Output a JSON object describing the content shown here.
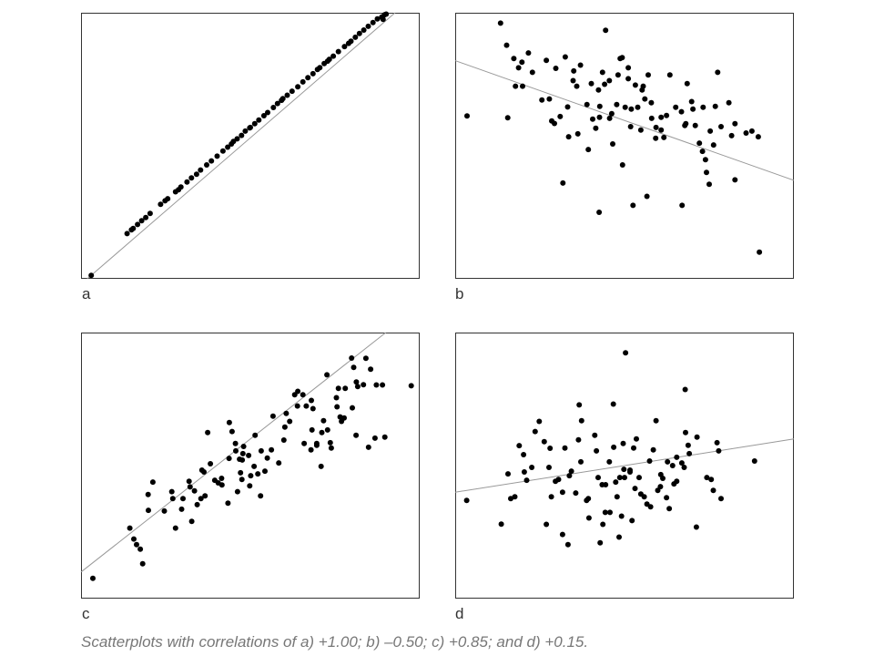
{
  "caption": "Scatterplots with correlations of a) +1.00; b) –0.50; c) +0.85; and d) +0.15.",
  "chart_data": [
    {
      "type": "scatter",
      "label": "a",
      "correlation": 1.0,
      "xlim": [
        0,
        100
      ],
      "ylim": [
        0,
        100
      ],
      "grid": false,
      "trendline": {
        "intercept": -2,
        "slope": 1.1
      },
      "points": [
        [
          3,
          1.3
        ],
        [
          13.6,
          17
        ],
        [
          15.4,
          18.9
        ],
        [
          16.7,
          20.4
        ],
        [
          17.9,
          21.8
        ],
        [
          19.1,
          23
        ],
        [
          20.4,
          24.6
        ],
        [
          23.5,
          28
        ],
        [
          25.6,
          30.1
        ],
        [
          27.9,
          32.7
        ],
        [
          29.5,
          34.5
        ],
        [
          31.3,
          36.4
        ],
        [
          32.6,
          37.9
        ],
        [
          34.1,
          39.3
        ],
        [
          35.3,
          40.9
        ],
        [
          37.1,
          42.8
        ],
        [
          40.2,
          46.1
        ],
        [
          41.9,
          48
        ],
        [
          43.3,
          49.5
        ],
        [
          44.4,
          50.7
        ],
        [
          46.1,
          52.6
        ],
        [
          47.4,
          53.9
        ],
        [
          48.5,
          55.5
        ],
        [
          49.8,
          56.7
        ],
        [
          51.3,
          58.3
        ],
        [
          52.5,
          59.7
        ],
        [
          54,
          61.3
        ],
        [
          55.1,
          62.5
        ],
        [
          56.8,
          64.4
        ],
        [
          58,
          65.9
        ],
        [
          59.2,
          67.1
        ],
        [
          60.9,
          69
        ],
        [
          62.3,
          70.5
        ],
        [
          64,
          72.2
        ],
        [
          65.5,
          74
        ],
        [
          67,
          75.6
        ],
        [
          68.5,
          77.1
        ],
        [
          69.8,
          78.7
        ],
        [
          71.8,
          80.9
        ],
        [
          72.8,
          81.8
        ],
        [
          74.5,
          83.7
        ],
        [
          76,
          85.4
        ],
        [
          77.8,
          87.3
        ],
        [
          79.7,
          89.3
        ],
        [
          81,
          90.8
        ],
        [
          82.2,
          92.2
        ],
        [
          83.5,
          93.5
        ],
        [
          84.8,
          94.9
        ],
        [
          86.2,
          96.3
        ],
        [
          87.5,
          97.7
        ],
        [
          89.6,
          99.2
        ],
        [
          90.1,
          99.5
        ],
        [
          89.2,
          97.5
        ],
        [
          88.8,
          98.4
        ],
        [
          79,
          88.5
        ],
        [
          73.3,
          82.5
        ],
        [
          70.5,
          79.4
        ],
        [
          59.6,
          67.7
        ],
        [
          50,
          56.9
        ],
        [
          45,
          51.6
        ],
        [
          38.5,
          44.3
        ],
        [
          28.8,
          33.5
        ],
        [
          14.9,
          18.4
        ],
        [
          24.8,
          29.3
        ]
      ]
    },
    {
      "type": "scatter",
      "label": "b",
      "correlation": -0.5,
      "xlim": [
        0,
        100
      ],
      "ylim": [
        0,
        100
      ],
      "grid": false,
      "trendline": {
        "intercept": 82,
        "slope": -0.45
      },
      "points": [
        [
          3.5,
          61.2
        ],
        [
          13.4,
          96.1
        ],
        [
          15.2,
          87.8
        ],
        [
          15.5,
          60.5
        ],
        [
          17.3,
          82.8
        ],
        [
          17.8,
          72.4
        ],
        [
          18.7,
          79.3
        ],
        [
          19.7,
          81.4
        ],
        [
          19.9,
          72.4
        ],
        [
          21.6,
          84.9
        ],
        [
          22.8,
          77.6
        ],
        [
          25.6,
          67.2
        ],
        [
          26.9,
          82.1
        ],
        [
          27.8,
          67.6
        ],
        [
          28.5,
          59.3
        ],
        [
          29.3,
          58.4
        ],
        [
          29.7,
          79.1
        ],
        [
          31,
          61
        ],
        [
          31.8,
          36
        ],
        [
          32.5,
          83.4
        ],
        [
          33.2,
          64.6
        ],
        [
          33.5,
          53.4
        ],
        [
          35,
          78.1
        ],
        [
          34.8,
          74.5
        ],
        [
          35.9,
          72.4
        ],
        [
          36.2,
          54.5
        ],
        [
          37,
          80.3
        ],
        [
          38.9,
          65.5
        ],
        [
          39.3,
          48.6
        ],
        [
          40.2,
          73.4
        ],
        [
          40.6,
          60
        ],
        [
          41.5,
          56.6
        ],
        [
          42.3,
          71
        ],
        [
          42.6,
          60.7
        ],
        [
          42.5,
          25
        ],
        [
          42.7,
          64.8
        ],
        [
          43.5,
          77.6
        ],
        [
          44.1,
          73.1
        ],
        [
          44.4,
          93.4
        ],
        [
          45.5,
          74.5
        ],
        [
          45.6,
          60.3
        ],
        [
          46.2,
          62.1
        ],
        [
          46.5,
          50.7
        ],
        [
          47.7,
          65.5
        ],
        [
          48.1,
          76.6
        ],
        [
          48.7,
          82.8
        ],
        [
          49.3,
          83.1
        ],
        [
          49.4,
          42.8
        ],
        [
          50.2,
          64.5
        ],
        [
          51.1,
          75.2
        ],
        [
          51.1,
          79.3
        ],
        [
          51.8,
          57.2
        ],
        [
          52,
          63.8
        ],
        [
          52.5,
          27.6
        ],
        [
          53.2,
          72.8
        ],
        [
          53.9,
          64.5
        ],
        [
          54.8,
          55.9
        ],
        [
          55.2,
          71
        ],
        [
          55.5,
          72.4
        ],
        [
          56,
          67.6
        ],
        [
          56.6,
          31
        ],
        [
          57,
          76.6
        ],
        [
          57.9,
          66.2
        ],
        [
          58,
          60.3
        ],
        [
          59.2,
          52.8
        ],
        [
          59.3,
          56.9
        ],
        [
          60.8,
          60.7
        ],
        [
          60.8,
          55.9
        ],
        [
          61.6,
          53.1
        ],
        [
          62.4,
          61.4
        ],
        [
          63.4,
          76.6
        ],
        [
          65.1,
          64.5
        ],
        [
          66.8,
          62.8
        ],
        [
          67,
          27.6
        ],
        [
          67.8,
          57.6
        ],
        [
          68.1,
          58.3
        ],
        [
          68.5,
          73.4
        ],
        [
          69.8,
          66.6
        ],
        [
          70.2,
          63.8
        ],
        [
          70.9,
          57.6
        ],
        [
          72.1,
          51
        ],
        [
          73.2,
          64.5
        ],
        [
          73,
          47.9
        ],
        [
          73.9,
          44.8
        ],
        [
          75.3,
          55.5
        ],
        [
          76.8,
          64.8
        ],
        [
          76.3,
          50.3
        ],
        [
          75,
          35.5
        ],
        [
          74.2,
          40
        ],
        [
          77.5,
          77.6
        ],
        [
          78.5,
          57.2
        ],
        [
          80.8,
          66.2
        ],
        [
          81.6,
          53.8
        ],
        [
          82.6,
          58.3
        ],
        [
          82.6,
          37.2
        ],
        [
          85.9,
          54.8
        ],
        [
          87.6,
          55.5
        ],
        [
          89.5,
          53.4
        ],
        [
          89.8,
          10
        ]
      ]
    },
    {
      "type": "scatter",
      "label": "c",
      "correlation": 0.85,
      "xlim": [
        0,
        100
      ],
      "ylim": [
        0,
        100
      ],
      "grid": false,
      "trendline": {
        "intercept": 10,
        "slope": 1.0
      },
      "points": [
        [
          3.5,
          7.6
        ],
        [
          14.4,
          26.5
        ],
        [
          15.6,
          22.4
        ],
        [
          16.4,
          20.3
        ],
        [
          17.5,
          18.6
        ],
        [
          18.2,
          13.1
        ],
        [
          19.8,
          39.1
        ],
        [
          19.9,
          33.2
        ],
        [
          21.2,
          43.8
        ],
        [
          24.6,
          32.9
        ],
        [
          26.8,
          40.2
        ],
        [
          27.1,
          37.6
        ],
        [
          27.9,
          26.5
        ],
        [
          29.7,
          33.6
        ],
        [
          30.1,
          37.6
        ],
        [
          31.9,
          44.1
        ],
        [
          32.2,
          42
        ],
        [
          32.7,
          29
        ],
        [
          33.5,
          40.5
        ],
        [
          34.3,
          35.3
        ],
        [
          35.4,
          37.6
        ],
        [
          36.3,
          47.6
        ],
        [
          36.6,
          38.6
        ],
        [
          35.7,
          48.3
        ],
        [
          37.4,
          62.4
        ],
        [
          38.2,
          50.7
        ],
        [
          39.5,
          44.5
        ],
        [
          40.5,
          43.5
        ],
        [
          41.6,
          42.7
        ],
        [
          41.5,
          45.2
        ],
        [
          43.4,
          35.9
        ],
        [
          43.7,
          52.7
        ],
        [
          43.8,
          66.2
        ],
        [
          44.6,
          62.8
        ],
        [
          45.6,
          58.3
        ],
        [
          45.7,
          55.5
        ],
        [
          46.2,
          40.2
        ],
        [
          46.8,
          52.4
        ],
        [
          47.1,
          47.3
        ],
        [
          47.5,
          44.8
        ],
        [
          47.8,
          54.5
        ],
        [
          47.6,
          52.1
        ],
        [
          48,
          57.2
        ],
        [
          49.8,
          42.4
        ],
        [
          49.5,
          53.8
        ],
        [
          50.1,
          46.2
        ],
        [
          51.1,
          49.7
        ],
        [
          51.4,
          61.4
        ],
        [
          52.2,
          46.9
        ],
        [
          53.2,
          55.5
        ],
        [
          53,
          38.6
        ],
        [
          54.3,
          47.9
        ],
        [
          55,
          52.8
        ],
        [
          56.2,
          55.9
        ],
        [
          56.7,
          68.6
        ],
        [
          58.4,
          51
        ],
        [
          59.9,
          59.6
        ],
        [
          60.2,
          64.5
        ],
        [
          60.6,
          69.6
        ],
        [
          61.6,
          66.6
        ],
        [
          63.1,
          76.6
        ],
        [
          63.9,
          72.4
        ],
        [
          64,
          77.9
        ],
        [
          65.5,
          76.6
        ],
        [
          65.9,
          58.3
        ],
        [
          66.5,
          72.4
        ],
        [
          67.9,
          55.9
        ],
        [
          68.2,
          63.4
        ],
        [
          68,
          74.5
        ],
        [
          68.5,
          71.4
        ],
        [
          69.6,
          57.6
        ],
        [
          69.6,
          58.3
        ],
        [
          70.9,
          49.7
        ],
        [
          71.1,
          62.4
        ],
        [
          71.6,
          66.9
        ],
        [
          72.8,
          63.4
        ],
        [
          72.6,
          84.1
        ],
        [
          73.6,
          58.6
        ],
        [
          73.9,
          56.6
        ],
        [
          75.4,
          75.5
        ],
        [
          75.6,
          72.1
        ],
        [
          76,
          79
        ],
        [
          76.5,
          68.3
        ],
        [
          76.9,
          66.6
        ],
        [
          77.7,
          67.9
        ],
        [
          78,
          79
        ],
        [
          79.9,
          90.4
        ],
        [
          80.1,
          71.7
        ],
        [
          80.5,
          86.9
        ],
        [
          81.7,
          79.7
        ],
        [
          81.2,
          61.4
        ],
        [
          81.3,
          81.4
        ],
        [
          83.4,
          80.4
        ],
        [
          84.1,
          90.3
        ],
        [
          84.9,
          56.9
        ],
        [
          85.5,
          86.2
        ],
        [
          86.8,
          60.3
        ],
        [
          87.2,
          80.3
        ],
        [
          89,
          80.3
        ],
        [
          89.7,
          60.7
        ],
        [
          97.5,
          80
        ]
      ]
    },
    {
      "type": "scatter",
      "label": "d",
      "correlation": 0.15,
      "xlim": [
        0,
        100
      ],
      "ylim": [
        0,
        100
      ],
      "grid": false,
      "trendline": {
        "intercept": 40,
        "slope": 0.2
      },
      "points": [
        [
          3.4,
          36.9
        ],
        [
          13.6,
          28
        ],
        [
          15.6,
          46.9
        ],
        [
          16.4,
          37.6
        ],
        [
          17.6,
          38.3
        ],
        [
          18.9,
          57.5
        ],
        [
          20.2,
          54.1
        ],
        [
          20.4,
          47.6
        ],
        [
          21.1,
          44.5
        ],
        [
          22.6,
          49.3
        ],
        [
          23.6,
          62.8
        ],
        [
          24.8,
          66.6
        ],
        [
          26.3,
          59
        ],
        [
          26.9,
          27.9
        ],
        [
          27.7,
          49.3
        ],
        [
          28,
          56.5
        ],
        [
          28.4,
          38.3
        ],
        [
          29.6,
          44.1
        ],
        [
          30.5,
          44.8
        ],
        [
          31.7,
          24.1
        ],
        [
          31.7,
          40
        ],
        [
          32.4,
          56.6
        ],
        [
          33.3,
          20.3
        ],
        [
          33.7,
          46.2
        ],
        [
          34.3,
          47.9
        ],
        [
          35.6,
          39.7
        ],
        [
          36.4,
          59.7
        ],
        [
          36.6,
          72.8
        ],
        [
          37.3,
          66.9
        ],
        [
          37.1,
          51.4
        ],
        [
          38.8,
          36.9
        ],
        [
          39.3,
          37.6
        ],
        [
          39.5,
          30.3
        ],
        [
          41.2,
          61.4
        ],
        [
          41.7,
          55.5
        ],
        [
          42.2,
          45.5
        ],
        [
          42.8,
          21
        ],
        [
          43.4,
          42.8
        ],
        [
          43.6,
          27.9
        ],
        [
          44.4,
          42.8
        ],
        [
          44.3,
          32.4
        ],
        [
          45.5,
          51.4
        ],
        [
          45.7,
          32.4
        ],
        [
          46.7,
          73.1
        ],
        [
          46.8,
          56.9
        ],
        [
          47.4,
          43.8
        ],
        [
          47.8,
          38.3
        ],
        [
          48.6,
          45.5
        ],
        [
          48.4,
          23.1
        ],
        [
          49.1,
          31
        ],
        [
          49.6,
          58.3
        ],
        [
          49.8,
          48.6
        ],
        [
          50,
          45.5
        ],
        [
          50.3,
          92.4
        ],
        [
          51.6,
          47.6
        ],
        [
          51.6,
          48.3
        ],
        [
          52.2,
          29.3
        ],
        [
          52.7,
          56.6
        ],
        [
          53.1,
          41.4
        ],
        [
          53.5,
          60
        ],
        [
          54.3,
          45.5
        ],
        [
          54.8,
          39.3
        ],
        [
          55.8,
          38.3
        ],
        [
          56.6,
          35.5
        ],
        [
          57.4,
          51.7
        ],
        [
          57.7,
          34.5
        ],
        [
          58.5,
          55.9
        ],
        [
          59.3,
          66.9
        ],
        [
          59.8,
          40.7
        ],
        [
          60.6,
          42.1
        ],
        [
          60.7,
          46.6
        ],
        [
          61.3,
          45.2
        ],
        [
          62.4,
          37.9
        ],
        [
          62.7,
          51.4
        ],
        [
          63.2,
          33.8
        ],
        [
          64.2,
          50
        ],
        [
          64.6,
          43.1
        ],
        [
          65.4,
          53.1
        ],
        [
          65.4,
          44.1
        ],
        [
          66.9,
          51
        ],
        [
          67.6,
          49.3
        ],
        [
          67.9,
          78.6
        ],
        [
          68,
          62.4
        ],
        [
          68.8,
          57.6
        ],
        [
          69.1,
          54.5
        ],
        [
          71.2,
          26.9
        ],
        [
          71.4,
          60.7
        ],
        [
          74.3,
          45.5
        ],
        [
          75.6,
          44.8
        ],
        [
          76.2,
          40.7
        ],
        [
          77.3,
          58.6
        ],
        [
          77.8,
          55.5
        ],
        [
          78.5,
          37.6
        ],
        [
          88.4,
          51.7
        ]
      ]
    }
  ]
}
